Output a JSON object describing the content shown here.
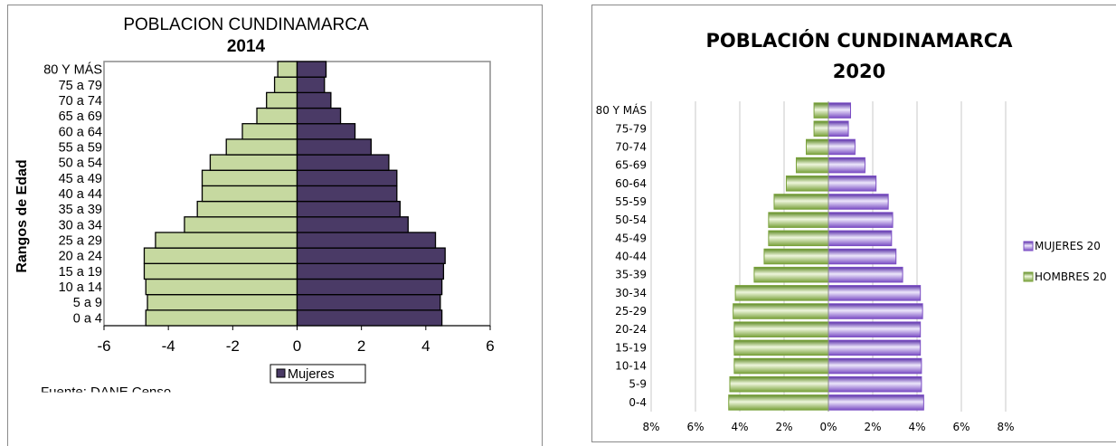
{
  "chart_data": [
    {
      "type": "bar",
      "orientation": "horizontal-population-pyramid",
      "title": "POBLACION CUNDINAMARCA",
      "subtitle": "2014",
      "ylabel": "Rangos de Edad",
      "xlabel": "",
      "xlim": [
        -6,
        6
      ],
      "x_ticks": [
        "-6",
        "-4",
        "-2",
        "0",
        "2",
        "4",
        "6"
      ],
      "categories": [
        "0 a 4",
        "5 a 9",
        "10 a 14",
        "15 a 19",
        "20 a 24",
        "25 a 29",
        "30 a 34",
        "35 a 39",
        "40 a 44",
        "45 a 49",
        "50 a 54",
        "55 a 59",
        "60 a 64",
        "65 a 69",
        "70 a 74",
        "75 a 79",
        "80 Y MÁS"
      ],
      "series": [
        {
          "name": "",
          "color": "#c6d9a0",
          "values": [
            -4.7,
            -4.65,
            -4.7,
            -4.75,
            -4.75,
            -4.4,
            -3.5,
            -3.1,
            -2.95,
            -2.95,
            -2.7,
            -2.2,
            -1.7,
            -1.25,
            -0.95,
            -0.7,
            -0.6
          ]
        },
        {
          "name": "Mujeres",
          "color": "#4a3a66",
          "values": [
            4.5,
            4.45,
            4.5,
            4.55,
            4.6,
            4.3,
            3.45,
            3.2,
            3.1,
            3.1,
            2.85,
            2.3,
            1.8,
            1.35,
            1.05,
            0.85,
            0.9
          ]
        }
      ],
      "legend": {
        "position": "bottom",
        "label": "Mujeres"
      },
      "source_text": "Fuente: DANE  Censo"
    },
    {
      "type": "bar",
      "orientation": "horizontal-population-pyramid",
      "title": "POBLACIÓN CUNDINAMARCA",
      "subtitle": "2020",
      "xlim": [
        -8,
        8
      ],
      "x_ticks": [
        "8%",
        "6%",
        "4%",
        "2%",
        "0%",
        "2%",
        "4%",
        "6%",
        "8%"
      ],
      "grid": true,
      "categories": [
        "0-4",
        "5-9",
        "10-14",
        "15-19",
        "20-24",
        "25-29",
        "30-34",
        "35-39",
        "40-44",
        "45-49",
        "50-54",
        "55-59",
        "60-64",
        "65-69",
        "70-74",
        "75-79",
        "80 Y MÁS"
      ],
      "series": [
        {
          "name": "MUJERES 20",
          "color": "#7b4ec4",
          "values": [
            4.3,
            4.2,
            4.2,
            4.15,
            4.15,
            4.25,
            4.15,
            3.35,
            3.05,
            2.85,
            2.9,
            2.7,
            2.15,
            1.65,
            1.2,
            0.9,
            1.0
          ]
        },
        {
          "name": "HOMBRES 20",
          "color": "#7aa23c",
          "values": [
            -4.5,
            -4.45,
            -4.25,
            -4.25,
            -4.25,
            -4.3,
            -4.2,
            -3.35,
            -2.9,
            -2.7,
            -2.7,
            -2.45,
            -1.9,
            -1.45,
            -1.0,
            -0.65,
            -0.65
          ]
        }
      ],
      "legend": {
        "position": "right"
      }
    }
  ]
}
